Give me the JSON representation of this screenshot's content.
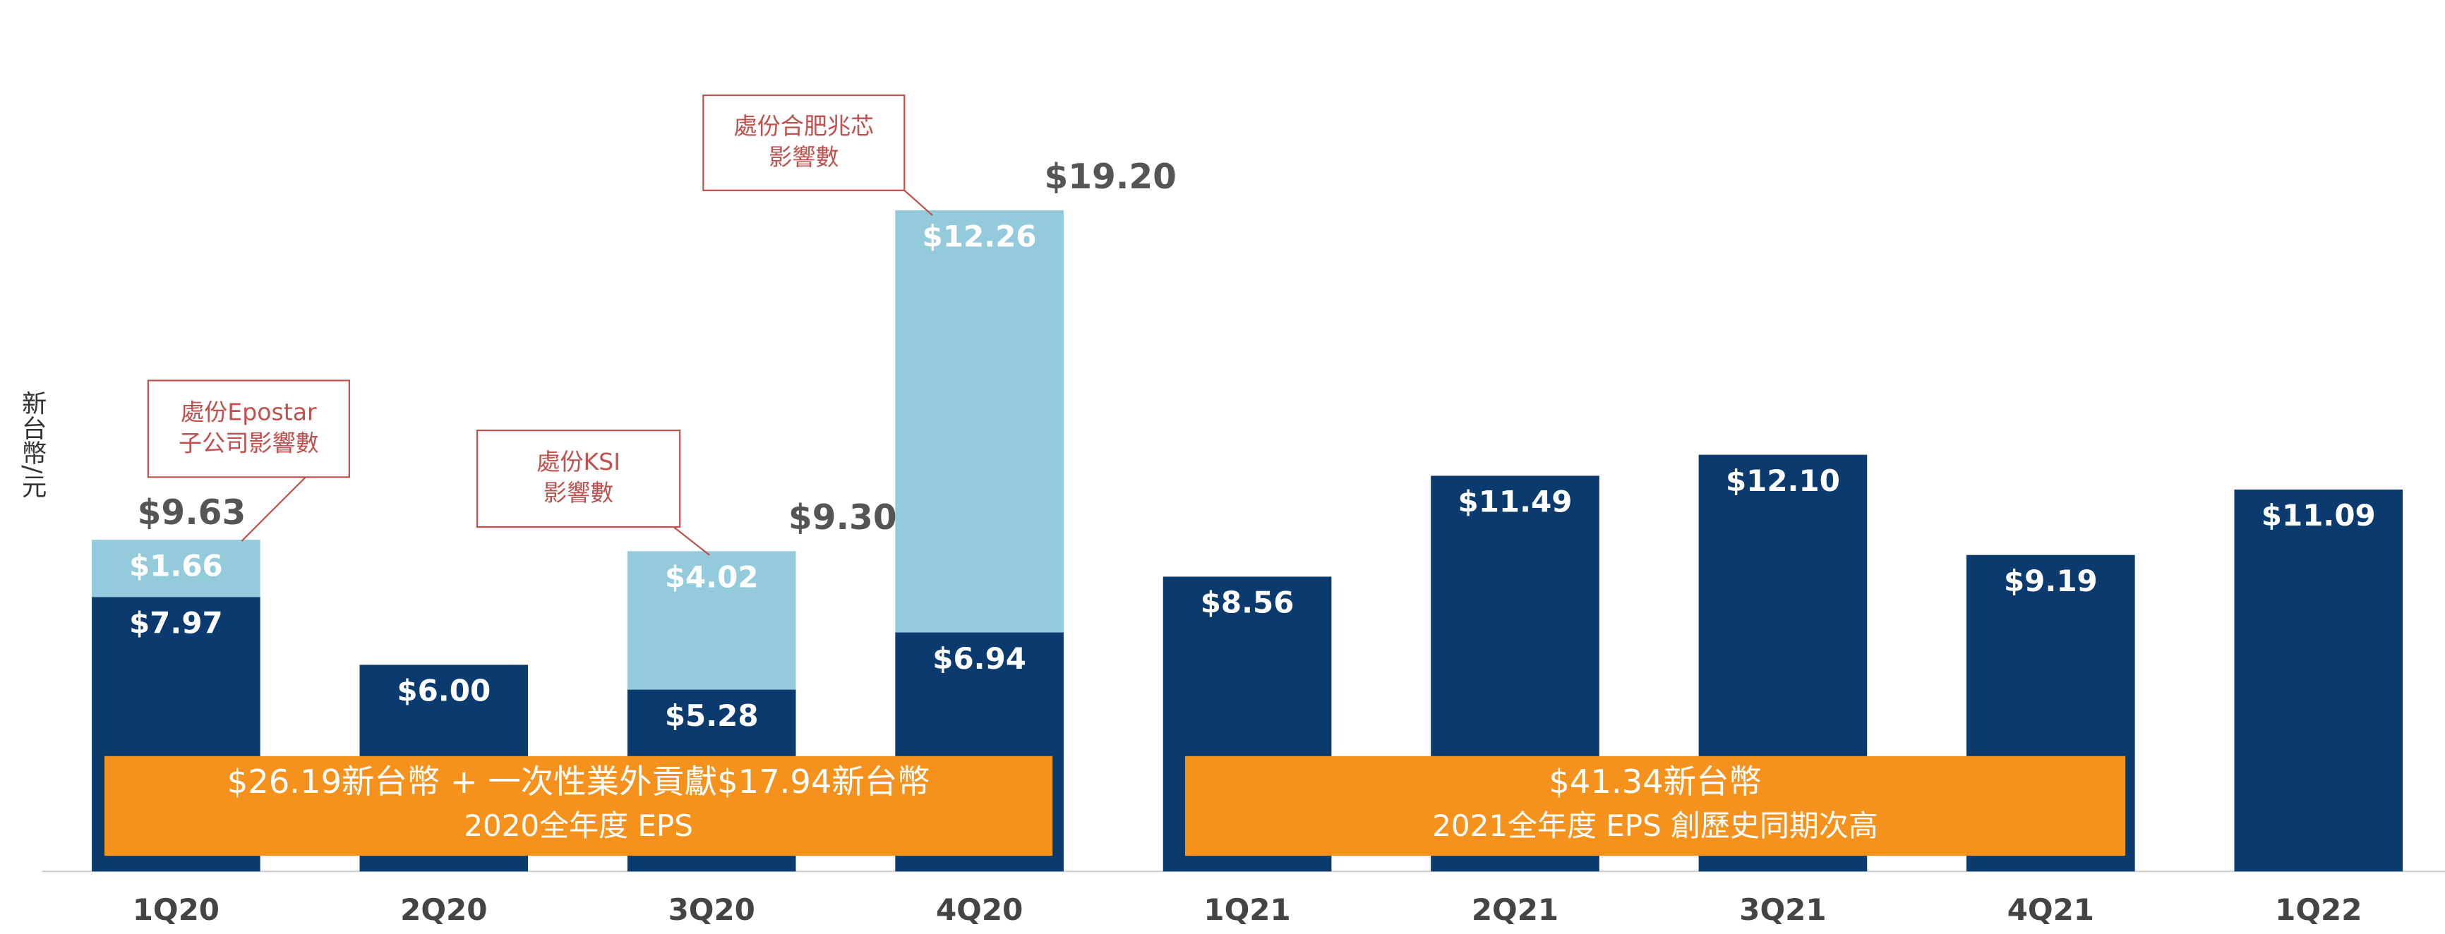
{
  "chart_data": {
    "type": "stacked_bar",
    "y_axis_label": "新台幣/元",
    "categories": [
      "1Q20",
      "2Q20",
      "3Q20",
      "4Q20",
      "1Q21",
      "2Q21",
      "3Q21",
      "4Q21",
      "1Q22"
    ],
    "series": [
      {
        "color": "#0b3a6e",
        "values": [
          7.97,
          6.0,
          5.28,
          6.94,
          8.56,
          11.49,
          12.1,
          9.19,
          11.09
        ],
        "value_labels": [
          "$7.97",
          "$6.00",
          "$5.28",
          "$6.94",
          "$8.56",
          "$11.49",
          "$12.10",
          "$9.19",
          "$11.09"
        ]
      },
      {
        "color": "#93cadc",
        "values": [
          1.66,
          null,
          4.02,
          12.26,
          null,
          null,
          null,
          null,
          null
        ],
        "value_labels": [
          "$1.66",
          null,
          "$4.02",
          "$12.26",
          null,
          null,
          null,
          null,
          null
        ]
      }
    ],
    "totals": {
      "values": [
        9.63,
        null,
        9.3,
        19.2,
        null,
        null,
        null,
        null,
        null
      ],
      "value_labels": [
        "$9.63",
        null,
        "$9.30",
        "$19.20",
        null,
        null,
        null,
        null,
        null
      ]
    },
    "ylim": [
      0,
      25.3
    ],
    "callouts": [
      {
        "lines": [
          "處份Epostar",
          "子公司影響數"
        ]
      },
      {
        "lines": [
          "處份KSI",
          "影響數"
        ]
      },
      {
        "lines": [
          "處份合肥兆芯",
          "影響數"
        ]
      }
    ],
    "summary_boxes": [
      {
        "color": "#f5921e",
        "lines": [
          "$26.19新台幣 + 一次性業外貢獻$17.94新台幣",
          "2020全年度 EPS"
        ]
      },
      {
        "color": "#f5921e",
        "lines": [
          "$41.34新台幣",
          "2021全年度 EPS 創歷史同期次高"
        ]
      }
    ]
  }
}
